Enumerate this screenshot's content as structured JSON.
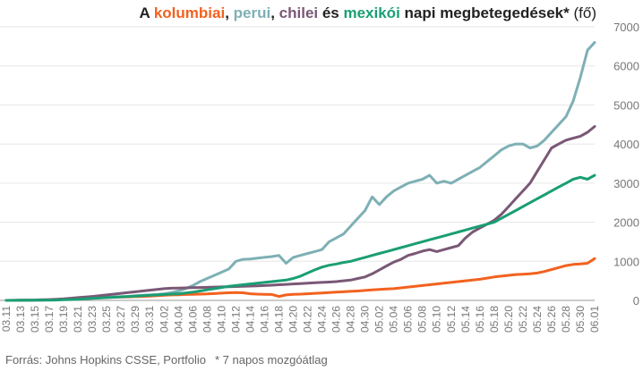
{
  "title": {
    "prefix": "A ",
    "colombia": "kolumbiai",
    "comma1": ", ",
    "peru": "perui",
    "comma2": ", ",
    "chile": "chilei",
    "and": " és ",
    "mexico": "mexikói",
    "suffix": " napi megbetegedések*",
    "unit": " (fő)"
  },
  "footer": {
    "source": "Forrás: Johns Hopkins CSSE, Portfolio",
    "note": "* 7 napos mozgóátlag"
  },
  "colors": {
    "colombia": "#f2621f",
    "peru": "#7eb0b5",
    "chile": "#7a5876",
    "mexico": "#1a9e74",
    "grid": "#e6e6e6",
    "axis_text": "#777777"
  },
  "chart_data": {
    "type": "line",
    "yaxis_position": "right",
    "ylim": [
      0,
      7000
    ],
    "yticks": [
      "0",
      "1000",
      "2000",
      "3000",
      "4000",
      "5000",
      "6000",
      "7000"
    ],
    "x": [
      "03.11",
      "03.12",
      "03.13",
      "03.14",
      "03.15",
      "03.16",
      "03.17",
      "03.18",
      "03.19",
      "03.20",
      "03.21",
      "03.22",
      "03.23",
      "03.24",
      "03.25",
      "03.26",
      "03.27",
      "03.28",
      "03.29",
      "03.30",
      "03.31",
      "04.01",
      "04.02",
      "04.03",
      "04.04",
      "04.05",
      "04.06",
      "04.07",
      "04.08",
      "04.09",
      "04.10",
      "04.11",
      "04.12",
      "04.13",
      "04.14",
      "04.15",
      "04.16",
      "04.17",
      "04.18",
      "04.19",
      "04.20",
      "04.21",
      "04.22",
      "04.23",
      "04.24",
      "04.25",
      "04.26",
      "04.27",
      "04.28",
      "04.29",
      "04.30",
      "05.01",
      "05.02",
      "05.03",
      "05.04",
      "05.05",
      "05.06",
      "05.07",
      "05.08",
      "05.09",
      "05.10",
      "05.11",
      "05.12",
      "05.13",
      "05.14",
      "05.15",
      "05.16",
      "05.17",
      "05.18",
      "05.19",
      "05.20",
      "05.21",
      "05.22",
      "05.23",
      "05.24",
      "05.25",
      "05.26",
      "05.27",
      "05.28",
      "05.29",
      "05.30",
      "05.31",
      "06.01"
    ],
    "xtick_labels": [
      "03.11",
      "03.13",
      "03.15",
      "03.17",
      "03.19",
      "03.21",
      "03.23",
      "03.25",
      "03.27",
      "03.29",
      "03.31",
      "04.02",
      "04.04",
      "04.06",
      "04.08",
      "04.10",
      "04.12",
      "04.14",
      "04.16",
      "04.18",
      "04.20",
      "04.22",
      "04.24",
      "04.26",
      "04.28",
      "04.30",
      "05.02",
      "05.04",
      "05.06",
      "05.08",
      "05.10",
      "05.12",
      "05.14",
      "05.16",
      "05.18",
      "05.20",
      "05.22",
      "05.24",
      "05.26",
      "05.28",
      "05.30",
      "06.01"
    ],
    "series": [
      {
        "name": "kolumbiai",
        "color": "#f2621f",
        "values": [
          0,
          1,
          3,
          5,
          8,
          10,
          15,
          20,
          30,
          40,
          50,
          60,
          65,
          70,
          75,
          80,
          85,
          90,
          95,
          100,
          110,
          120,
          130,
          140,
          145,
          150,
          155,
          160,
          165,
          175,
          185,
          195,
          200,
          195,
          170,
          160,
          155,
          150,
          100,
          140,
          155,
          160,
          170,
          180,
          190,
          200,
          210,
          220,
          230,
          240,
          255,
          270,
          280,
          290,
          300,
          320,
          340,
          360,
          380,
          400,
          420,
          440,
          460,
          480,
          500,
          520,
          540,
          570,
          600,
          620,
          640,
          660,
          670,
          680,
          700,
          740,
          790,
          840,
          890,
          920,
          930,
          950,
          1070
        ]
      },
      {
        "name": "perui",
        "color": "#7eb0b5",
        "values": [
          0,
          1,
          2,
          3,
          5,
          8,
          12,
          18,
          25,
          32,
          40,
          50,
          60,
          70,
          80,
          90,
          95,
          100,
          120,
          130,
          140,
          150,
          170,
          200,
          240,
          300,
          380,
          480,
          560,
          640,
          720,
          800,
          1000,
          1050,
          1060,
          1080,
          1100,
          1120,
          1150,
          950,
          1100,
          1150,
          1200,
          1250,
          1300,
          1500,
          1600,
          1700,
          1900,
          2100,
          2300,
          2650,
          2450,
          2650,
          2800,
          2900,
          3000,
          3050,
          3100,
          3200,
          3000,
          3050,
          3000,
          3100,
          3200,
          3300,
          3400,
          3550,
          3700,
          3850,
          3950,
          4000,
          4000,
          3900,
          3950,
          4100,
          4300,
          4500,
          4700,
          5100,
          5700,
          6400,
          6600
        ]
      },
      {
        "name": "chilei",
        "color": "#7a5876",
        "values": [
          0,
          2,
          4,
          6,
          10,
          15,
          20,
          30,
          40,
          55,
          70,
          85,
          100,
          120,
          140,
          160,
          180,
          200,
          220,
          240,
          260,
          280,
          300,
          310,
          315,
          320,
          325,
          330,
          335,
          340,
          345,
          350,
          355,
          360,
          365,
          370,
          380,
          390,
          400,
          410,
          420,
          430,
          440,
          450,
          460,
          470,
          480,
          500,
          520,
          560,
          600,
          680,
          780,
          880,
          980,
          1050,
          1150,
          1200,
          1260,
          1300,
          1250,
          1300,
          1350,
          1400,
          1600,
          1750,
          1850,
          1950,
          2050,
          2200,
          2400,
          2600,
          2800,
          3000,
          3300,
          3600,
          3900,
          4000,
          4100,
          4150,
          4200,
          4300,
          4450
        ]
      },
      {
        "name": "mexikói",
        "color": "#1a9e74",
        "values": [
          0,
          1,
          2,
          3,
          4,
          6,
          8,
          10,
          15,
          20,
          30,
          40,
          50,
          60,
          70,
          80,
          90,
          100,
          110,
          120,
          130,
          140,
          150,
          160,
          170,
          190,
          210,
          240,
          270,
          300,
          330,
          360,
          380,
          400,
          420,
          440,
          460,
          480,
          500,
          520,
          560,
          620,
          700,
          780,
          850,
          900,
          930,
          970,
          1000,
          1050,
          1100,
          1150,
          1200,
          1250,
          1300,
          1350,
          1400,
          1450,
          1500,
          1550,
          1600,
          1650,
          1700,
          1750,
          1800,
          1850,
          1900,
          1950,
          2000,
          2100,
          2200,
          2300,
          2400,
          2500,
          2600,
          2700,
          2800,
          2900,
          3000,
          3100,
          3150,
          3100,
          3200
        ]
      }
    ]
  }
}
